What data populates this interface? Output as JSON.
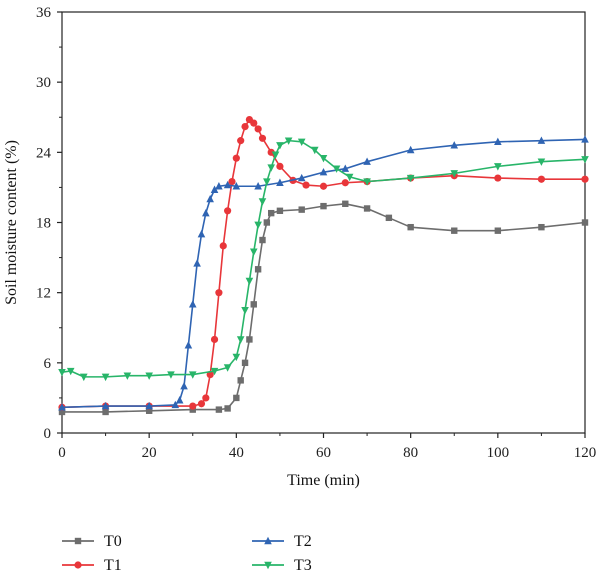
{
  "chart_data": {
    "type": "line",
    "xlabel": "Time (min)",
    "ylabel": "Soil moisture content (%)",
    "xlim": [
      0,
      120
    ],
    "ylim": [
      0,
      36
    ],
    "xticks": [
      0,
      20,
      40,
      60,
      80,
      100,
      120
    ],
    "yticks": [
      0,
      6,
      12,
      18,
      24,
      30,
      36
    ],
    "grid": false,
    "legend_position": "bottom",
    "series": [
      {
        "name": "T0",
        "color": "#6d6d6d",
        "marker": "square",
        "x": [
          0,
          10,
          20,
          30,
          36,
          38,
          40,
          41,
          42,
          43,
          44,
          45,
          46,
          47,
          48,
          50,
          55,
          60,
          65,
          70,
          75,
          80,
          90,
          100,
          110,
          120
        ],
        "y": [
          1.8,
          1.8,
          1.9,
          2.0,
          2.0,
          2.1,
          3.0,
          4.5,
          6.0,
          8.0,
          11.0,
          14.0,
          16.5,
          18.0,
          18.8,
          19.0,
          19.1,
          19.4,
          19.6,
          19.2,
          18.4,
          17.6,
          17.3,
          17.3,
          17.6,
          18.0
        ]
      },
      {
        "name": "T1",
        "color": "#e8363a",
        "marker": "circle",
        "x": [
          0,
          10,
          20,
          30,
          32,
          33,
          34,
          35,
          36,
          37,
          38,
          39,
          40,
          41,
          42,
          43,
          44,
          45,
          46,
          48,
          50,
          53,
          56,
          60,
          65,
          70,
          80,
          90,
          100,
          110,
          120
        ],
        "y": [
          2.2,
          2.3,
          2.3,
          2.3,
          2.5,
          3.0,
          5.0,
          8.0,
          12.0,
          16.0,
          19.0,
          21.5,
          23.5,
          25.0,
          26.2,
          26.8,
          26.5,
          26.0,
          25.2,
          24.0,
          22.8,
          21.6,
          21.2,
          21.1,
          21.4,
          21.5,
          21.8,
          22.0,
          21.8,
          21.7,
          21.7
        ]
      },
      {
        "name": "T2",
        "color": "#2f64b3",
        "marker": "triangle-up",
        "x": [
          0,
          10,
          20,
          26,
          27,
          28,
          29,
          30,
          31,
          32,
          33,
          34,
          35,
          36,
          38,
          40,
          45,
          50,
          55,
          60,
          65,
          70,
          80,
          90,
          100,
          110,
          120
        ],
        "y": [
          2.2,
          2.3,
          2.3,
          2.4,
          2.8,
          4.0,
          7.5,
          11.0,
          14.5,
          17.0,
          18.8,
          20.0,
          20.8,
          21.1,
          21.2,
          21.1,
          21.1,
          21.4,
          21.8,
          22.3,
          22.6,
          23.2,
          24.2,
          24.6,
          24.9,
          25.0,
          25.1
        ]
      },
      {
        "name": "T3",
        "color": "#28b569",
        "marker": "triangle-down",
        "x": [
          0,
          2,
          5,
          10,
          15,
          20,
          25,
          30,
          35,
          38,
          40,
          41,
          42,
          43,
          44,
          45,
          46,
          47,
          48,
          49,
          50,
          52,
          55,
          58,
          60,
          63,
          66,
          70,
          80,
          90,
          100,
          110,
          120
        ],
        "y": [
          5.2,
          5.3,
          4.8,
          4.8,
          4.9,
          4.9,
          5.0,
          5.0,
          5.3,
          5.6,
          6.5,
          8.0,
          10.5,
          13.0,
          15.5,
          17.8,
          19.8,
          21.5,
          22.7,
          23.8,
          24.6,
          25.0,
          24.9,
          24.2,
          23.5,
          22.6,
          21.9,
          21.5,
          21.8,
          22.2,
          22.8,
          23.2,
          23.4
        ]
      }
    ]
  }
}
